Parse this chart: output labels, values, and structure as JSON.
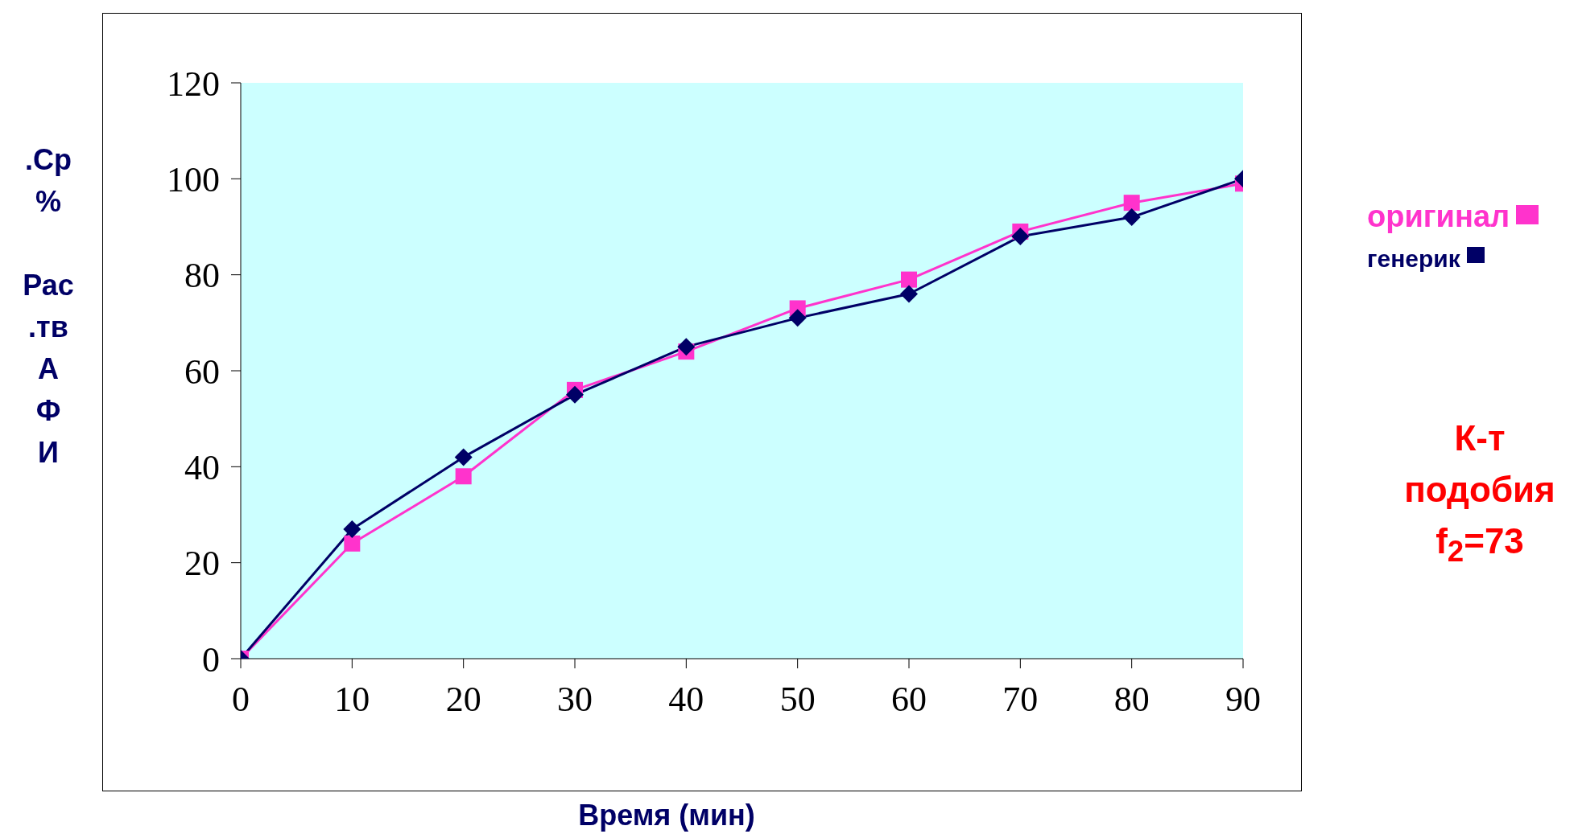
{
  "chart_data": {
    "type": "line",
    "xlabel": "Время (мин)",
    "ylabel": ".Ср\n%\n\nРас\n.тв\nА\nФ\nИ",
    "x": [
      0,
      10,
      20,
      30,
      40,
      50,
      60,
      70,
      80,
      90
    ],
    "series": [
      {
        "name": "оригинал",
        "color": "#ff33cc",
        "marker": "square",
        "values": [
          0,
          24,
          38,
          56,
          64,
          73,
          79,
          89,
          95,
          99
        ]
      },
      {
        "name": "генерик",
        "color": "#000066",
        "marker": "diamond",
        "values": [
          0,
          27,
          42,
          55,
          65,
          71,
          76,
          88,
          92,
          100
        ]
      }
    ],
    "xlim": [
      0,
      90
    ],
    "xticks": [
      0,
      10,
      20,
      30,
      40,
      50,
      60,
      70,
      80,
      90
    ],
    "ylim": [
      0,
      120
    ],
    "yticks": [
      0,
      20,
      40,
      60,
      80,
      100,
      120
    ],
    "legend": "right",
    "line_style": "solid",
    "annotations": [
      "К-т\nподобия\nf$_{2}$=73"
    ]
  }
}
